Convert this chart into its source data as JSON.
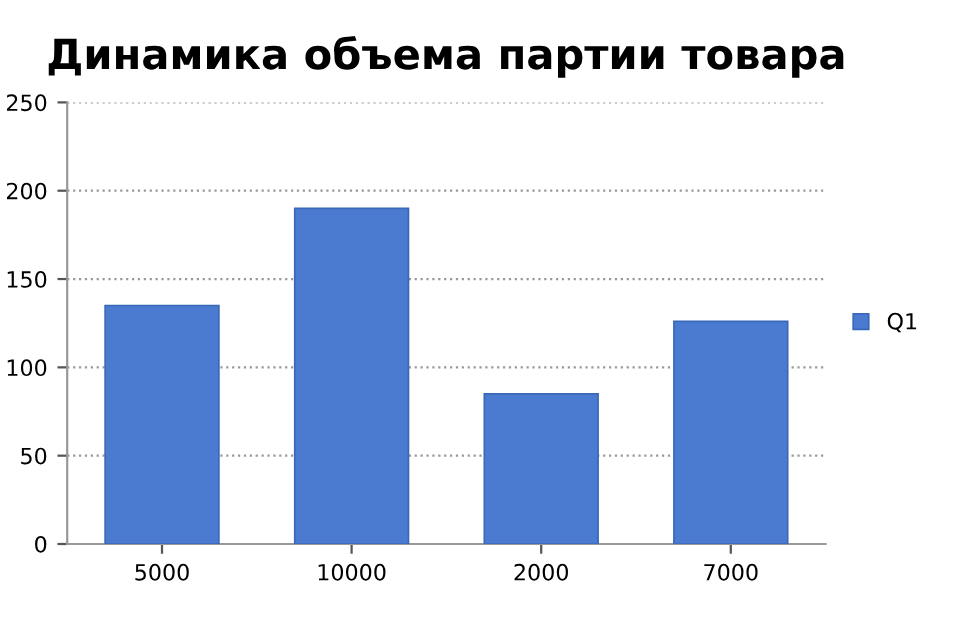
{
  "chart_data": {
    "type": "bar",
    "title": "Динамика объема партии товара",
    "categories": [
      "5000",
      "10000",
      "2000",
      "7000"
    ],
    "series": [
      {
        "name": "Q1",
        "color": "#4a7bd0",
        "values": [
          135,
          190,
          85,
          126
        ]
      }
    ],
    "ylim": [
      0,
      250
    ],
    "yticks": [
      0,
      50,
      100,
      150,
      200,
      250
    ],
    "grid": "y",
    "legend": "right"
  }
}
